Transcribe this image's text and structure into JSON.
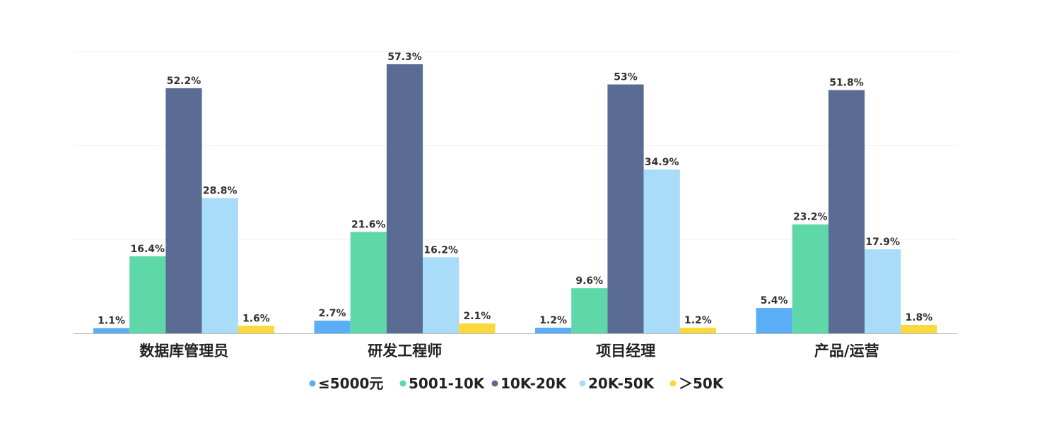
{
  "chart_data": {
    "type": "bar",
    "categories": [
      "数据库管理员",
      "研发工程师",
      "项目经理",
      "产品/运营"
    ],
    "series": [
      {
        "name": "≤5000元",
        "color": "#5aaef5",
        "values": [
          1.1,
          2.7,
          1.2,
          5.4
        ],
        "labels": [
          "1.1%",
          "2.7%",
          "1.2%",
          "5.4%"
        ]
      },
      {
        "name": "5001-10K",
        "color": "#5fd8a9",
        "values": [
          16.4,
          21.6,
          9.6,
          23.2
        ],
        "labels": [
          "16.4%",
          "21.6%",
          "9.6%",
          "23.2%"
        ]
      },
      {
        "name": "10K-20K",
        "color": "#5a6c93",
        "values": [
          52.2,
          57.3,
          53,
          51.8
        ],
        "labels": [
          "52.2%",
          "57.3%",
          "53%",
          "51.8%"
        ]
      },
      {
        "name": "20K-50K",
        "color": "#a8dcf9",
        "values": [
          28.8,
          16.2,
          34.9,
          17.9
        ],
        "labels": [
          "28.8%",
          "16.2%",
          "34.9%",
          "17.9%"
        ]
      },
      {
        "name": "＞50K",
        "color": "#fcd93b",
        "values": [
          1.6,
          2.1,
          1.2,
          1.8
        ],
        "labels": [
          "1.6%",
          "2.1%",
          "1.2%",
          "1.8%"
        ]
      }
    ],
    "ylim": [
      0,
      60
    ],
    "grid": true,
    "legend_position": "bottom"
  }
}
